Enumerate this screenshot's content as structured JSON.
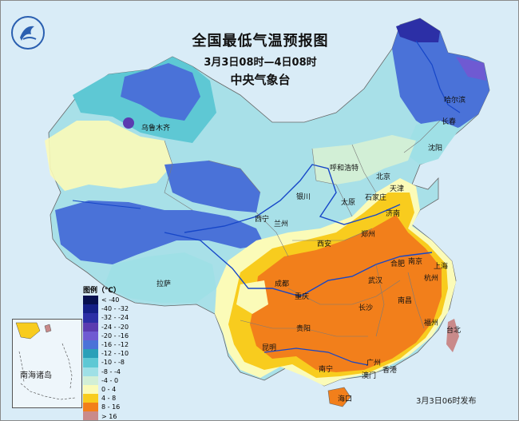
{
  "title": "全国最低气温预报图",
  "period": "3月3日08时—4日08时",
  "issuer": "中央气象台",
  "publish_time": "3月3日06时发布",
  "inset_label": "南海诸岛",
  "legend": {
    "title": "图例（℃）",
    "items": [
      {
        "label": "< -40",
        "color": "#07104f"
      },
      {
        "label": "-40 - -32",
        "color": "#141f86"
      },
      {
        "label": "-32 - -24",
        "color": "#2c2fa6"
      },
      {
        "label": "-24 - -20",
        "color": "#5a3bb0"
      },
      {
        "label": "-20 - -16",
        "color": "#6f5ad2"
      },
      {
        "label": "-16 - -12",
        "color": "#4a72d8"
      },
      {
        "label": "-12 - -10",
        "color": "#2aa0b8"
      },
      {
        "label": "-10 - -8",
        "color": "#5ec8d4"
      },
      {
        "label": "-8 - -4",
        "color": "#9fe0e6"
      },
      {
        "label": "-4 - 0",
        "color": "#d2efd6"
      },
      {
        "label": "0 - 4",
        "color": "#fbfbb8"
      },
      {
        "label": "4 - 8",
        "color": "#f8cc1e"
      },
      {
        "label": "8 - 16",
        "color": "#f27f1b"
      },
      {
        "label": "> 16",
        "color": "#c98a8a"
      }
    ]
  },
  "cities": [
    {
      "name": "乌鲁木齐"
    },
    {
      "name": "哈尔滨"
    },
    {
      "name": "长春"
    },
    {
      "name": "沈阳"
    },
    {
      "name": "呼和浩特"
    },
    {
      "name": "北京"
    },
    {
      "name": "天津"
    },
    {
      "name": "石家庄"
    },
    {
      "name": "太原"
    },
    {
      "name": "银川"
    },
    {
      "name": "济南"
    },
    {
      "name": "西宁"
    },
    {
      "name": "兰州"
    },
    {
      "name": "郑州"
    },
    {
      "name": "西安"
    },
    {
      "name": "拉萨"
    },
    {
      "name": "成都"
    },
    {
      "name": "合肥"
    },
    {
      "name": "南京"
    },
    {
      "name": "上海"
    },
    {
      "name": "武汉"
    },
    {
      "name": "杭州"
    },
    {
      "name": "重庆"
    },
    {
      "name": "长沙"
    },
    {
      "name": "南昌"
    },
    {
      "name": "贵阳"
    },
    {
      "name": "福州"
    },
    {
      "name": "昆明"
    },
    {
      "name": "台北"
    },
    {
      "name": "南宁"
    },
    {
      "name": "广州"
    },
    {
      "name": "香港"
    },
    {
      "name": "澳门"
    },
    {
      "name": "海口"
    }
  ]
}
